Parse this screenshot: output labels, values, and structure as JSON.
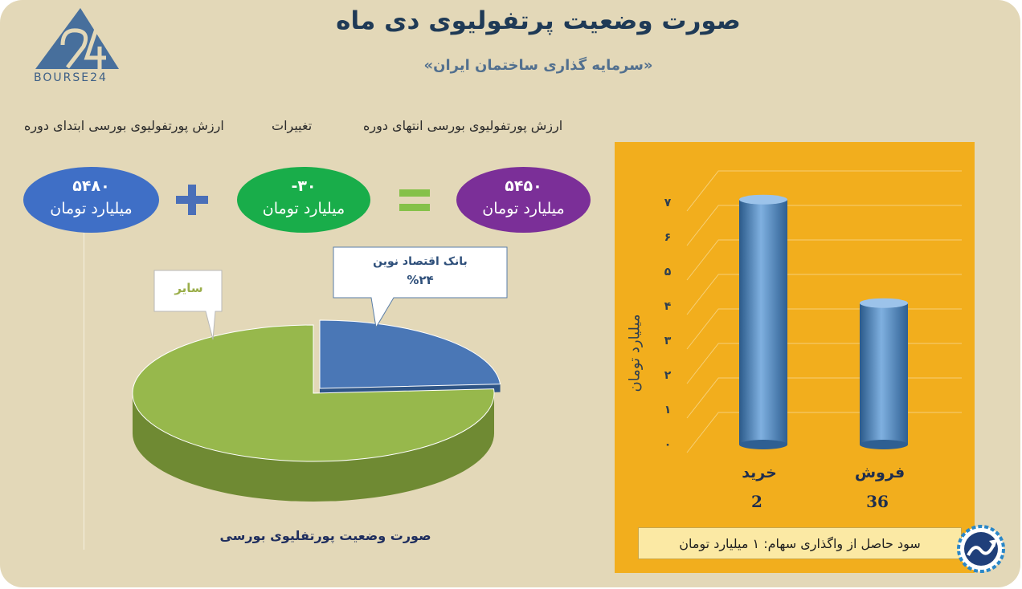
{
  "brand": {
    "logo_text": "BOURSE24"
  },
  "header": {
    "title": "صورت وضعیت پرتفولیوی دی ماه",
    "subtitle": "«سرمایه گذاری ساختمان ایران»"
  },
  "summary": {
    "end_label": "ارزش پورتفولیوی بورسی انتهای دوره",
    "change_label": "تغییرات",
    "start_label": "ارزش پورتفولیوی بورسی ابتدای دوره",
    "end_value": "۵۴۵۰",
    "change_value": "-۳۰",
    "start_value": "۵۴۸۰",
    "unit": "میلیارد تومان",
    "plus_sign": "+",
    "equals_sign": "="
  },
  "colors": {
    "purple": "#7b2f98",
    "green": "#19ad4a",
    "blue": "#3f6fc6",
    "pie_blue": "#4a77b6",
    "pie_green": "#97b84c",
    "bar": "#4d82b8",
    "panel": "#f2ae1d"
  },
  "chart_data": [
    {
      "type": "pie",
      "title": "صورت وضعیت پورتفلیوی بورسی",
      "slices": [
        {
          "label": "بانک اقتصاد نوین",
          "value": 24,
          "value_label": "%۲۴"
        },
        {
          "label": "سایر",
          "value": 76
        }
      ]
    },
    {
      "type": "bar",
      "categories": [
        "خرید",
        "فروش"
      ],
      "category_values": [
        "2",
        "36"
      ],
      "values": [
        7.1,
        4.1
      ],
      "ylabel": "میلیارد تومان",
      "ylim": [
        0,
        7
      ],
      "yticks": [
        "۰",
        "۱",
        "۲",
        "۳",
        "۴",
        "۵",
        "۶",
        "۷"
      ],
      "grid": true
    }
  ],
  "footer": {
    "note": "سود حاصل از واگذاری سهام: ۱ میلیارد تومان"
  }
}
